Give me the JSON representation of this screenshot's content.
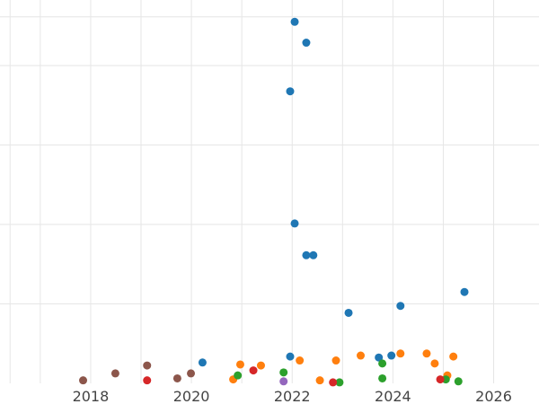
{
  "chart_data": {
    "type": "scatter",
    "title": "",
    "xlabel": "",
    "ylabel": "",
    "grid": true,
    "legend": "none",
    "xlim": [
      2016.2,
      2026.9
    ],
    "ylim": [
      0,
      39.5
    ],
    "x_ticks": [
      "2018",
      "2020",
      "2022",
      "2024",
      "2026"
    ],
    "x_tick_values": [
      2018,
      2020,
      2022,
      2024,
      2026
    ],
    "y_tick_values": [
      8,
      16,
      24,
      32
    ],
    "colors": {
      "blue": "#1f77b4",
      "orange": "#ff7f0e",
      "green": "#2ca02c",
      "red": "#d62728",
      "purple": "#9467bd",
      "brown": "#8c564b"
    },
    "series": [
      {
        "color": "#1f77b4",
        "points": [
          [
            2022.05,
            36.4
          ],
          [
            2022.28,
            34.3
          ],
          [
            2021.96,
            29.4
          ],
          [
            2022.05,
            16.1
          ],
          [
            2022.28,
            12.9
          ],
          [
            2022.42,
            12.9
          ],
          [
            2023.12,
            7.1
          ],
          [
            2024.15,
            7.8
          ],
          [
            2025.42,
            9.2
          ],
          [
            2020.22,
            2.1
          ],
          [
            2021.96,
            2.7
          ],
          [
            2023.72,
            2.6
          ],
          [
            2023.97,
            2.8
          ]
        ]
      },
      {
        "color": "#ff7f0e",
        "points": [
          [
            2020.83,
            0.4
          ],
          [
            2020.97,
            1.9
          ],
          [
            2021.38,
            1.8
          ],
          [
            2022.15,
            2.3
          ],
          [
            2022.55,
            0.3
          ],
          [
            2022.87,
            2.3
          ],
          [
            2023.36,
            2.8
          ],
          [
            2024.15,
            3.0
          ],
          [
            2024.67,
            3.0
          ],
          [
            2024.83,
            2.0
          ],
          [
            2025.08,
            0.8
          ],
          [
            2025.2,
            2.7
          ]
        ]
      },
      {
        "color": "#2ca02c",
        "points": [
          [
            2020.92,
            0.8
          ],
          [
            2021.83,
            1.1
          ],
          [
            2022.94,
            0.1
          ],
          [
            2023.79,
            0.5
          ],
          [
            2023.79,
            2.0
          ],
          [
            2025.05,
            0.4
          ],
          [
            2025.3,
            0.2
          ]
        ]
      },
      {
        "color": "#d62728",
        "points": [
          [
            2019.12,
            0.3
          ],
          [
            2021.23,
            1.3
          ],
          [
            2022.81,
            0.1
          ],
          [
            2024.94,
            0.4
          ]
        ]
      },
      {
        "color": "#9467bd",
        "points": [
          [
            2021.83,
            0.2
          ]
        ]
      },
      {
        "color": "#8c564b",
        "points": [
          [
            2017.85,
            0.3
          ],
          [
            2018.49,
            1.0
          ],
          [
            2019.12,
            1.8
          ],
          [
            2019.72,
            0.5
          ],
          [
            2019.99,
            1.0
          ]
        ]
      }
    ]
  }
}
